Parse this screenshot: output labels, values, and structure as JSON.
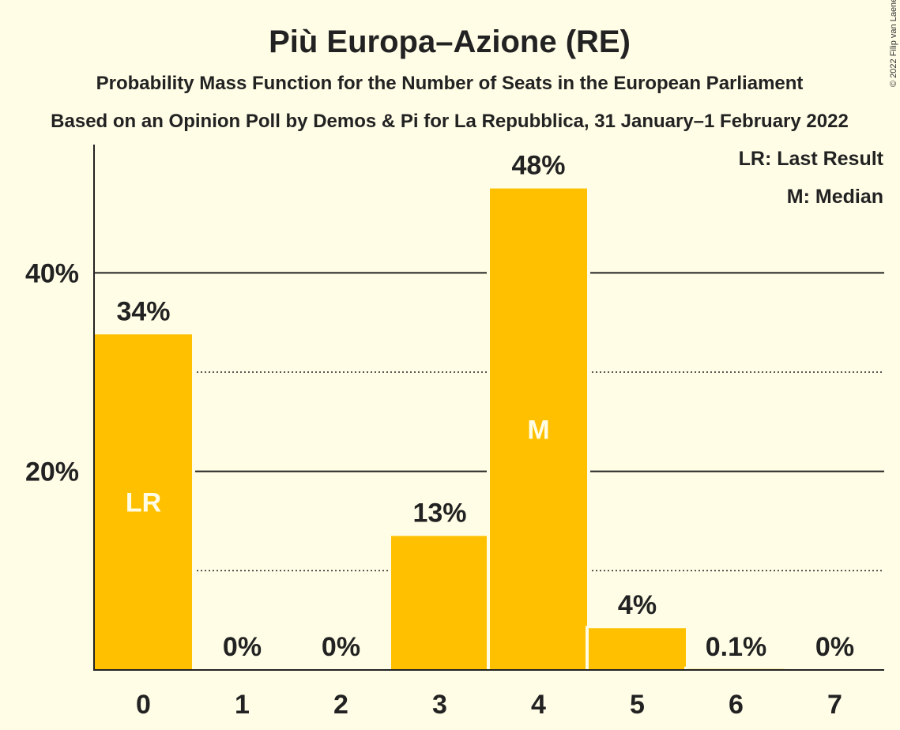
{
  "chart_data": {
    "type": "bar",
    "title": "Più Europa–Azione (RE)",
    "subtitle": "Probability Mass Function for the Number of Seats in the European Parliament",
    "source_line": "Based on an Opinion Poll by Demos & Pi for La Repubblica, 31 January–1 February 2022",
    "copyright": "© 2022 Filip van Laenen",
    "categories": [
      "0",
      "1",
      "2",
      "3",
      "4",
      "5",
      "6",
      "7"
    ],
    "values": [
      33.8,
      0,
      0,
      13.5,
      48.5,
      4.2,
      0.1,
      0
    ],
    "value_labels": [
      "34%",
      "0%",
      "0%",
      "13%",
      "48%",
      "4%",
      "0.1%",
      "0%"
    ],
    "bar_markers": [
      {
        "category": "0",
        "text": "LR"
      },
      {
        "category": "4",
        "text": "M"
      }
    ],
    "legend": [
      "LR: Last Result",
      "M: Median"
    ],
    "legend_position": "top-right",
    "yticks": [
      {
        "value": 20,
        "label": "20%"
      },
      {
        "value": 40,
        "label": "40%"
      }
    ],
    "minor_gridlines": [
      10,
      30
    ],
    "ylim": [
      0,
      53
    ],
    "bar_color": "#FFC000",
    "background_color": "#FFFDE6",
    "text_color": "#222222"
  }
}
